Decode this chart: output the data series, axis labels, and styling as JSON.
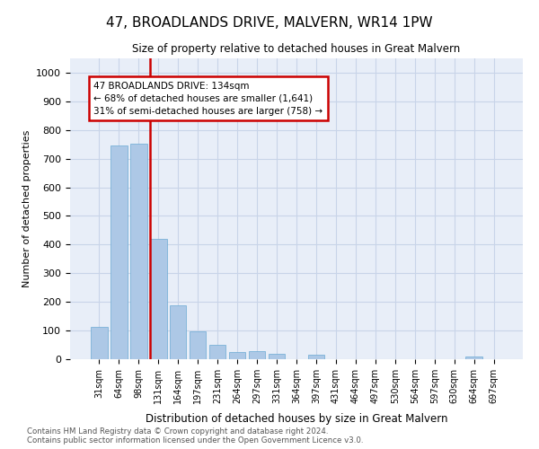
{
  "title": "47, BROADLANDS DRIVE, MALVERN, WR14 1PW",
  "subtitle": "Size of property relative to detached houses in Great Malvern",
  "xlabel": "Distribution of detached houses by size in Great Malvern",
  "ylabel": "Number of detached properties",
  "footer_line1": "Contains HM Land Registry data © Crown copyright and database right 2024.",
  "footer_line2": "Contains public sector information licensed under the Open Government Licence v3.0.",
  "annotation_line1": "47 BROADLANDS DRIVE: 134sqm",
  "annotation_line2": "← 68% of detached houses are smaller (1,641)",
  "annotation_line3": "31% of semi-detached houses are larger (758) →",
  "bar_color": "#adc8e6",
  "bar_edge_color": "#6aaad4",
  "grid_color": "#c8d4e8",
  "bg_color": "#e8eef8",
  "vline_color": "#cc0000",
  "annotation_box_color": "#cc0000",
  "categories": [
    "31sqm",
    "64sqm",
    "98sqm",
    "131sqm",
    "164sqm",
    "197sqm",
    "231sqm",
    "264sqm",
    "297sqm",
    "331sqm",
    "364sqm",
    "397sqm",
    "431sqm",
    "464sqm",
    "497sqm",
    "530sqm",
    "564sqm",
    "597sqm",
    "630sqm",
    "664sqm",
    "697sqm"
  ],
  "values": [
    113,
    745,
    752,
    420,
    188,
    97,
    50,
    25,
    27,
    18,
    0,
    15,
    0,
    0,
    0,
    0,
    0,
    0,
    0,
    8,
    0
  ],
  "vline_position": 3,
  "ylim": [
    0,
    1050
  ],
  "yticks": [
    0,
    100,
    200,
    300,
    400,
    500,
    600,
    700,
    800,
    900,
    1000
  ]
}
